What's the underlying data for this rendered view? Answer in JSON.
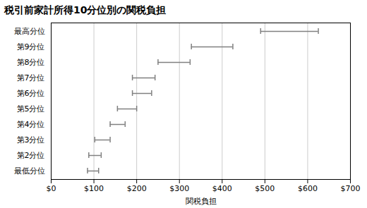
{
  "chart_data": {
    "type": "errorbar",
    "orientation": "horizontal",
    "title": "税引前家計所得10分位別の関税負担",
    "xlabel": "関税負担",
    "categories": [
      "最高分位",
      "第9分位",
      "第8分位",
      "第7分位",
      "第6分位",
      "第5分位",
      "第4分位",
      "第3分位",
      "第2分位",
      "最低分位"
    ],
    "values": [
      555,
      370,
      283,
      215,
      210,
      175,
      155,
      120,
      100,
      98
    ],
    "error_low": [
      65,
      42,
      33,
      25,
      20,
      20,
      17,
      18,
      12,
      13
    ],
    "error_high": [
      70,
      55,
      42,
      28,
      25,
      25,
      18,
      18,
      17,
      13
    ],
    "color": "#808080",
    "xlim": [
      0,
      700
    ],
    "xticks": [
      {
        "value": 0,
        "label": "$0"
      },
      {
        "value": 100,
        "label": "$100"
      },
      {
        "value": 200,
        "label": "$200"
      },
      {
        "value": 300,
        "label": "$300"
      },
      {
        "value": 400,
        "label": "$400"
      },
      {
        "value": 500,
        "label": "$500"
      },
      {
        "value": 600,
        "label": "$600"
      },
      {
        "value": 700,
        "label": "$700"
      }
    ],
    "grid": true
  }
}
